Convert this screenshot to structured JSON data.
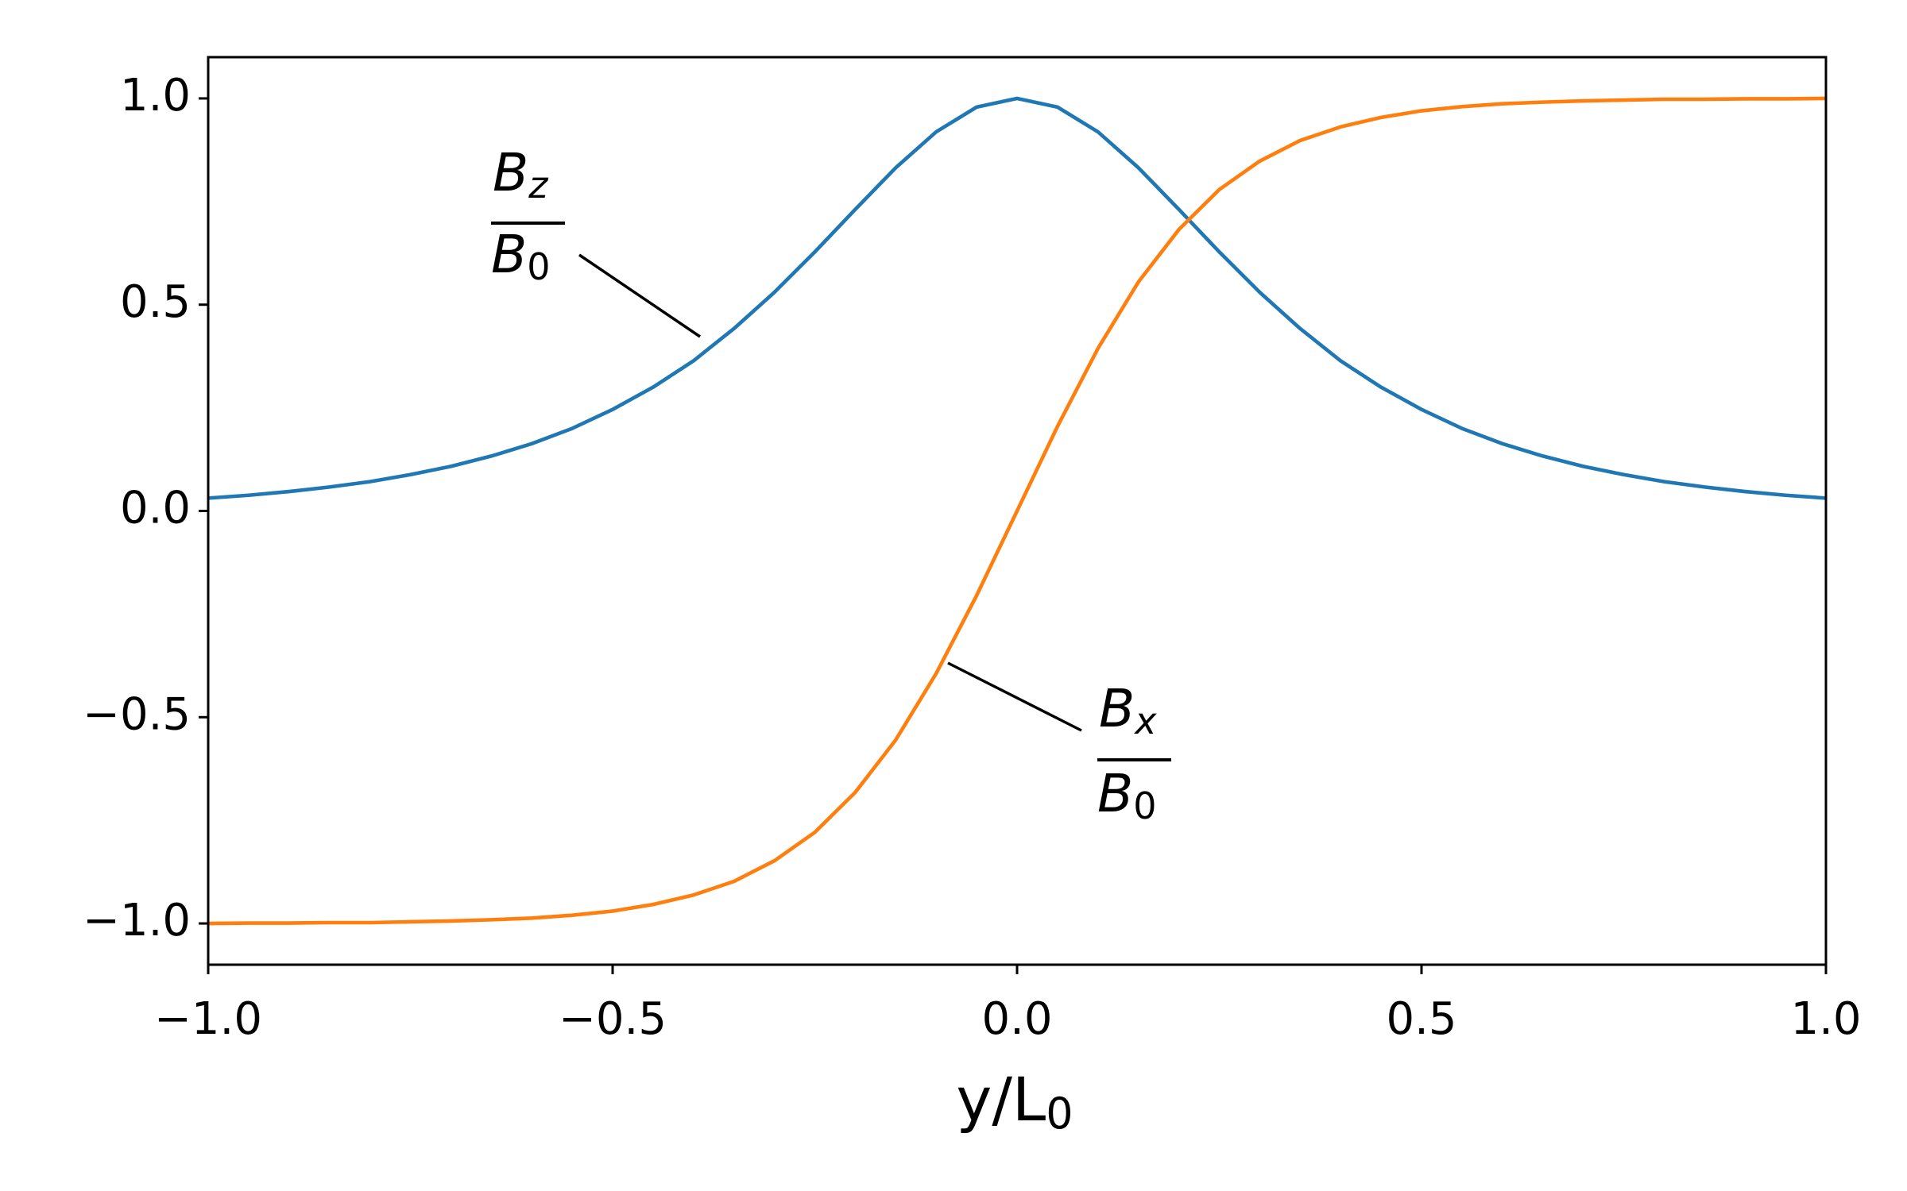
{
  "chart_data": {
    "type": "line",
    "xlabel": "y/L",
    "xlabel_sub": "0",
    "x": [
      -1.0,
      -0.95,
      -0.9,
      -0.85,
      -0.8,
      -0.75,
      -0.7,
      -0.65,
      -0.6,
      -0.55,
      -0.5,
      -0.45,
      -0.4,
      -0.35,
      -0.3,
      -0.25,
      -0.2,
      -0.15,
      -0.1,
      -0.05,
      0.0,
      0.05,
      0.1,
      0.15,
      0.2,
      0.25,
      0.3,
      0.35,
      0.4,
      0.45,
      0.5,
      0.55,
      0.6,
      0.65,
      0.7,
      0.75,
      0.8,
      0.85,
      0.9,
      0.95,
      1.0
    ],
    "series": [
      {
        "name": "Bz",
        "color": "#1f77b4",
        "values": [
          0.031,
          0.038,
          0.047,
          0.058,
          0.071,
          0.088,
          0.108,
          0.133,
          0.163,
          0.2,
          0.246,
          0.3,
          0.364,
          0.442,
          0.53,
          0.628,
          0.731,
          0.832,
          0.919,
          0.979,
          1.0,
          0.979,
          0.919,
          0.832,
          0.731,
          0.628,
          0.53,
          0.442,
          0.364,
          0.3,
          0.246,
          0.2,
          0.163,
          0.133,
          0.108,
          0.088,
          0.071,
          0.058,
          0.047,
          0.038,
          0.031
        ]
      },
      {
        "name": "Bx",
        "color": "#ff7f0e",
        "values": [
          -1.0,
          -0.999,
          -0.999,
          -0.998,
          -0.998,
          -0.996,
          -0.994,
          -0.991,
          -0.987,
          -0.98,
          -0.97,
          -0.954,
          -0.931,
          -0.898,
          -0.848,
          -0.779,
          -0.682,
          -0.555,
          -0.394,
          -0.205,
          0.0,
          0.205,
          0.394,
          0.555,
          0.682,
          0.779,
          0.848,
          0.898,
          0.931,
          0.954,
          0.97,
          0.98,
          0.987,
          0.991,
          0.994,
          0.996,
          0.998,
          0.998,
          0.999,
          0.999,
          1.0
        ]
      }
    ],
    "annotations": [
      {
        "num": "B",
        "num_sub": "z",
        "den": "B",
        "den_sub": "0"
      },
      {
        "num": "B",
        "num_sub": "x",
        "den": "B",
        "den_sub": "0"
      }
    ],
    "xlim": [
      -1.0,
      1.0
    ],
    "xticks": [
      {
        "value": -1.0,
        "label": "−1.0"
      },
      {
        "value": -0.5,
        "label": "−0.5"
      },
      {
        "value": 0.0,
        "label": "0.0"
      },
      0.5,
      {
        "value": 1.0,
        "label": "1.0"
      }
    ],
    "ylim": [
      -1.1,
      1.1
    ],
    "yticks": [
      {
        "value": -1.0,
        "label": "−1.0"
      },
      {
        "value": -0.5,
        "label": "−0.5"
      },
      {
        "value": 0.0,
        "label": "0.0"
      },
      0.5,
      {
        "value": 1.0,
        "label": "1.0"
      }
    ]
  }
}
